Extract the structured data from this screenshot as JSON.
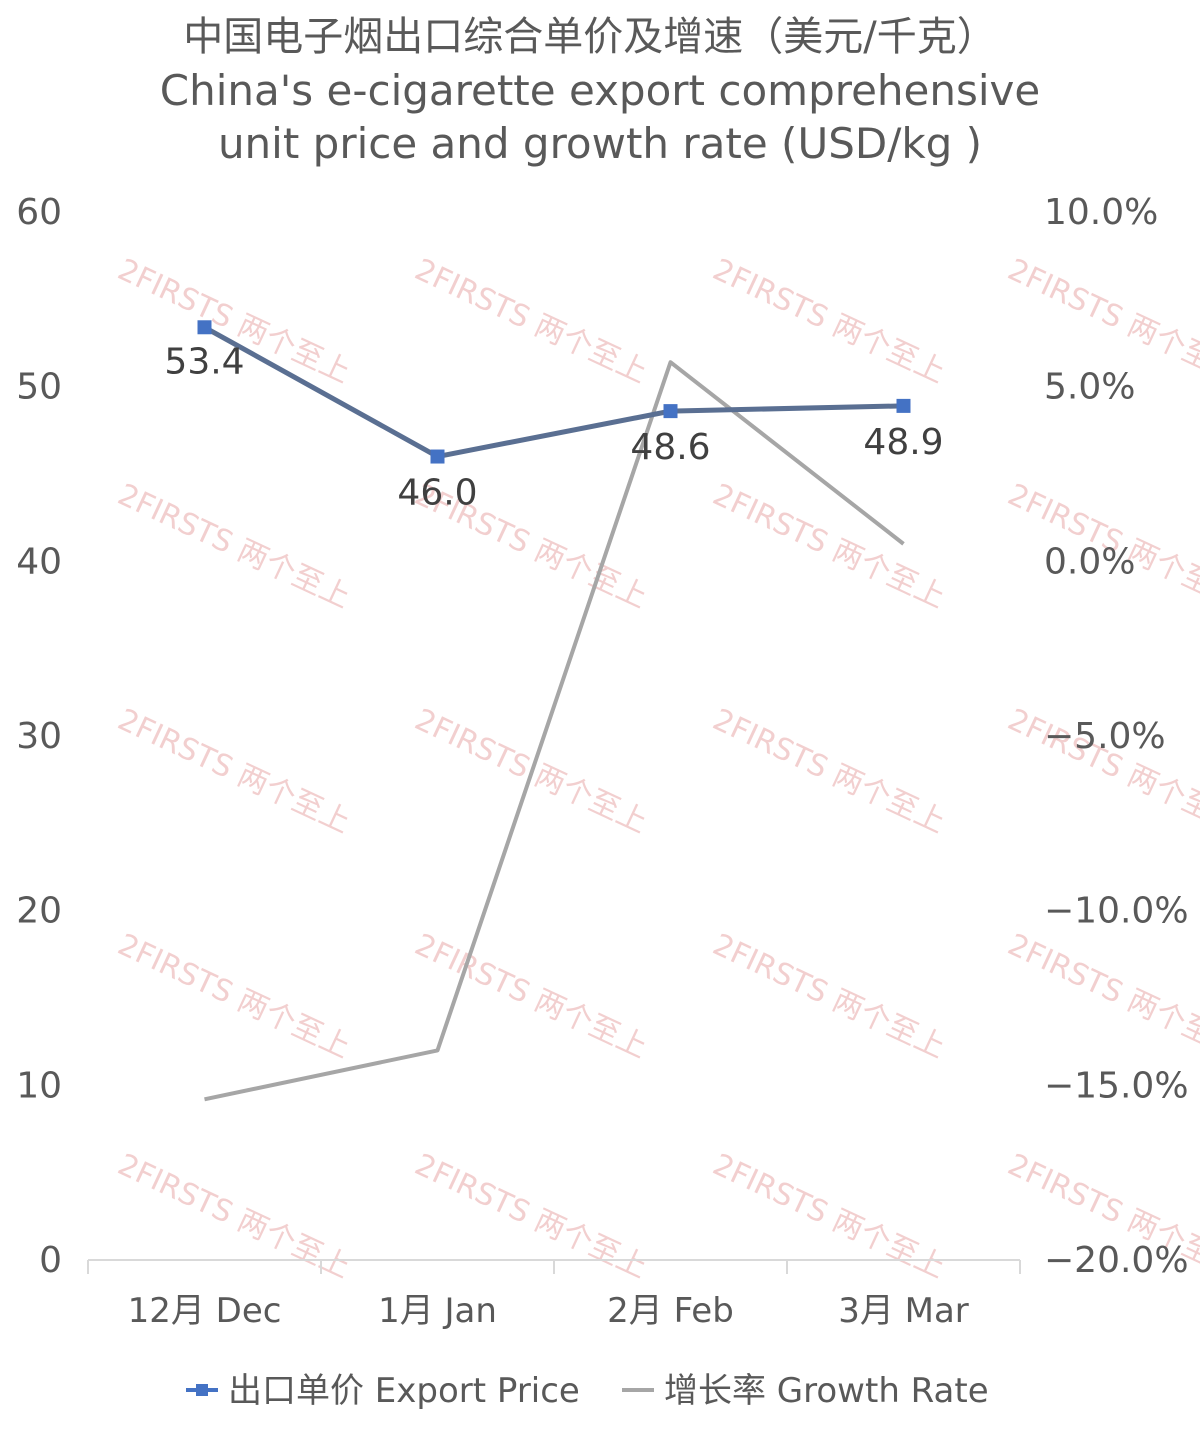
{
  "chart_data": {
    "type": "line",
    "title_line1": "中国电子烟出口综合单价及增速（美元/千克）",
    "title_line2": "China's e-cigarette export comprehensive",
    "title_line3": "unit price and growth rate (USD/kg )",
    "categories": [
      "12月 Dec",
      "1月 Jan",
      "2月 Feb",
      "3月 Mar"
    ],
    "y_left": {
      "min": 0,
      "max": 60,
      "step": 10,
      "ticks": [
        "0",
        "10",
        "20",
        "30",
        "40",
        "50",
        "60"
      ]
    },
    "y_right": {
      "min": -20,
      "max": 10,
      "step": 5,
      "ticks": [
        "-20.0%",
        "-15.0%",
        "-10.0%",
        "-5.0%",
        "0.0%",
        "5.0%",
        "10.0%"
      ]
    },
    "series": [
      {
        "name": "出口单价 Export Price",
        "axis": "left",
        "values": [
          53.4,
          46.0,
          48.6,
          48.9
        ],
        "labels": [
          "53.4",
          "46.0",
          "48.6",
          "48.9"
        ],
        "color": "#5a6f92",
        "marker_color": "#4472c4",
        "marker": "square"
      },
      {
        "name": "增长率 Growth Rate",
        "axis": "right",
        "values": [
          -15.4,
          -14.0,
          5.7,
          0.5
        ],
        "color": "#a6a6a6",
        "marker": "none"
      }
    ],
    "legend": "bottom",
    "grid": false,
    "watermark": "2FIRSTS 两个至上"
  }
}
